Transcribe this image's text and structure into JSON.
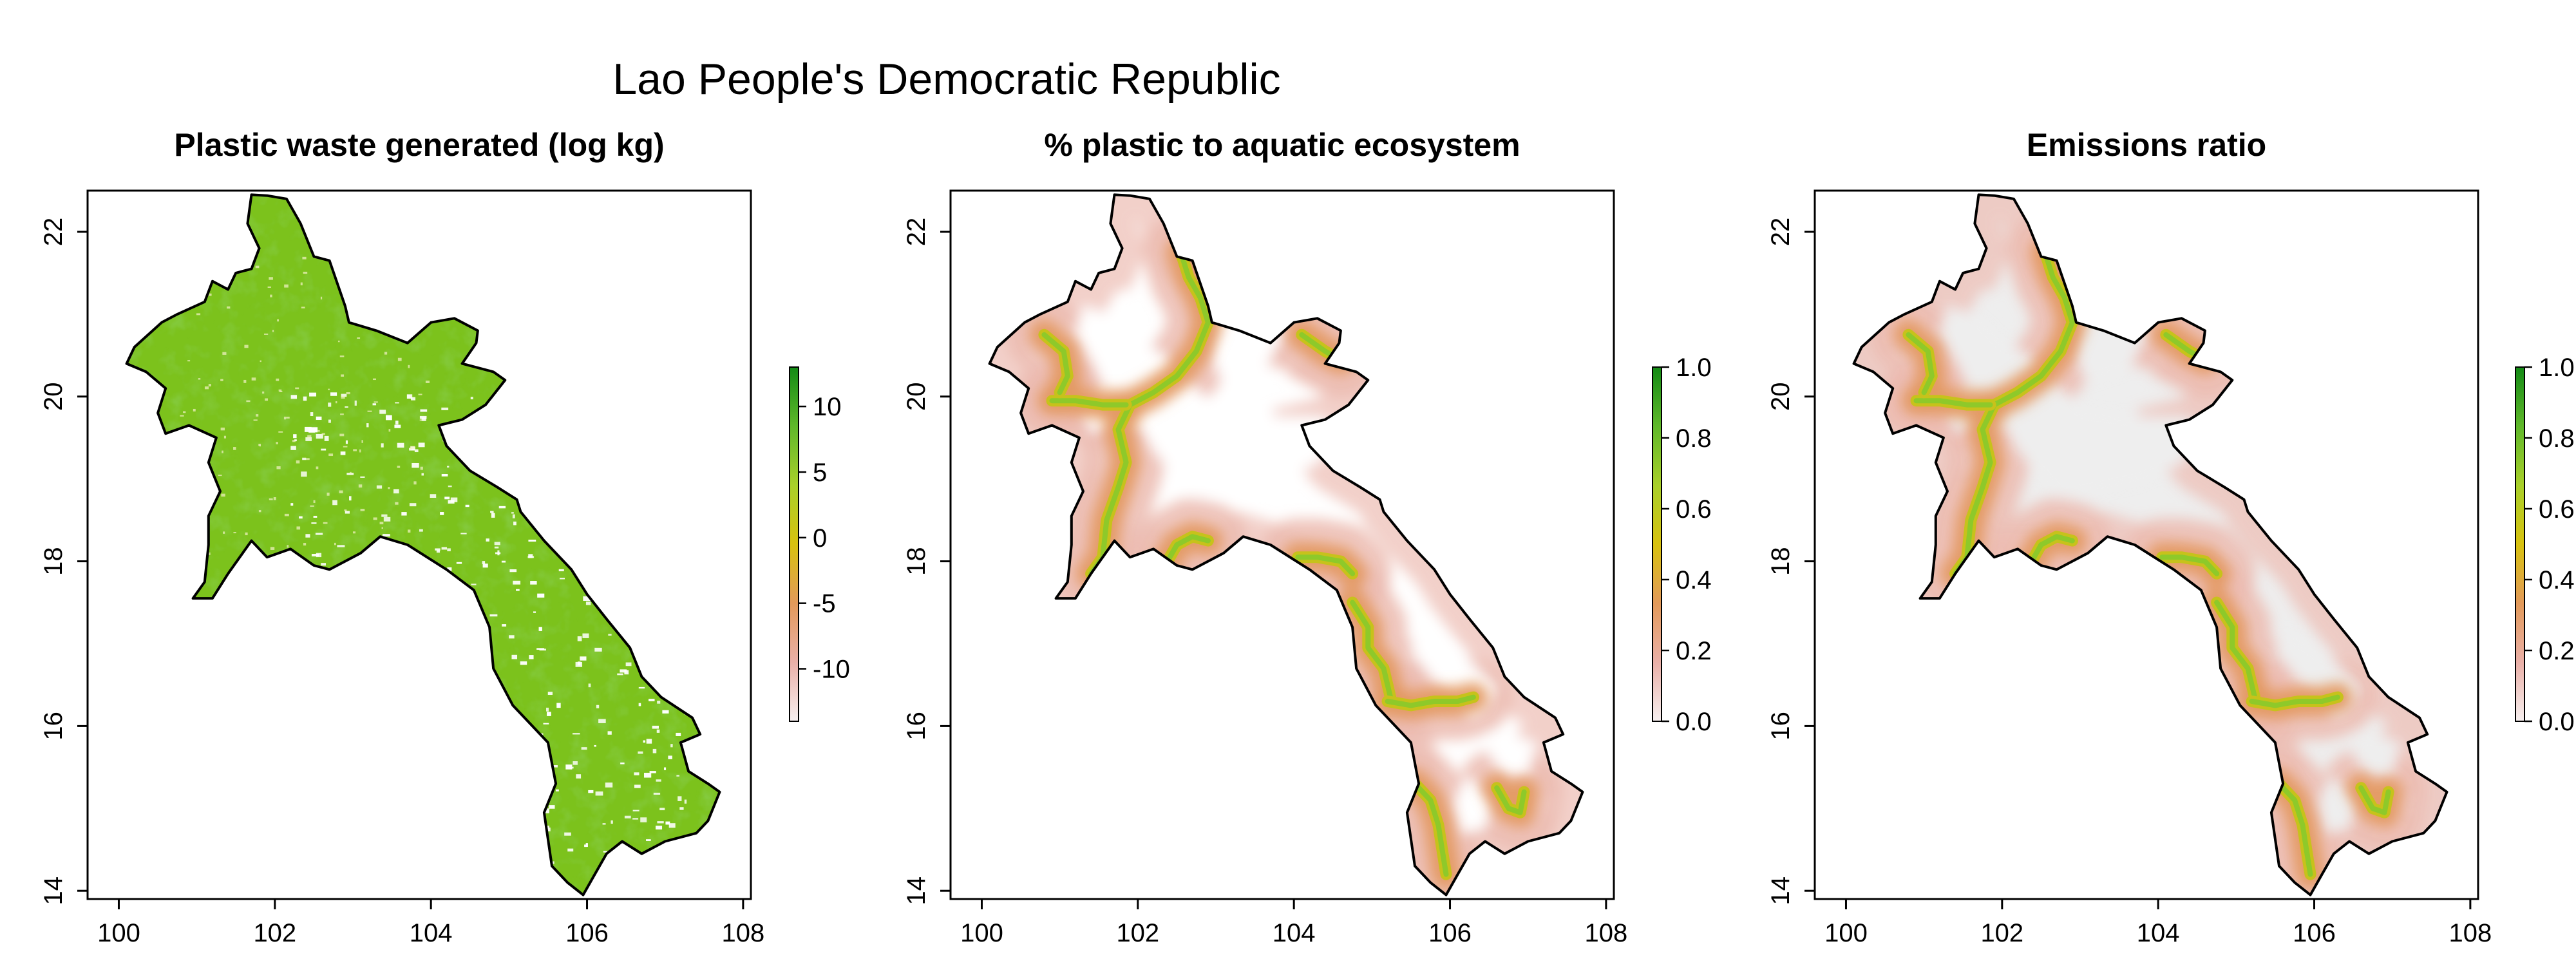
{
  "title": "Lao People's Democratic Republic",
  "panels": [
    {
      "title": "Plastic waste generated (log kg)",
      "variable": "waste",
      "x_ticks": [
        "100",
        "102",
        "104",
        "106",
        "108"
      ],
      "y_ticks": [
        "14",
        "16",
        "18",
        "20",
        "22"
      ],
      "xlim": [
        99.6,
        108.1
      ],
      "ylim": [
        13.9,
        22.5
      ],
      "colorbar": {
        "range": [
          -14,
          13
        ],
        "ticks": [
          "10",
          "5",
          "0",
          "-5",
          "-10"
        ],
        "tick_values": [
          10,
          5,
          0,
          -5,
          -10
        ],
        "colors": [
          "#f7f0f0",
          "#eab0a8",
          "#e39a5a",
          "#d8c20f",
          "#a9d02a",
          "#5fb82a",
          "#138a15"
        ]
      }
    },
    {
      "title": "% plastic to aquatic ecosystem",
      "variable": "aquatic_share",
      "x_ticks": [
        "100",
        "102",
        "104",
        "106",
        "108"
      ],
      "y_ticks": [
        "14",
        "16",
        "18",
        "20",
        "22"
      ],
      "xlim": [
        99.6,
        108.1
      ],
      "ylim": [
        13.9,
        22.5
      ],
      "colorbar": {
        "range": [
          0,
          1
        ],
        "ticks": [
          "1.0",
          "0.8",
          "0.6",
          "0.4",
          "0.2",
          "0.0"
        ],
        "tick_values": [
          1.0,
          0.8,
          0.6,
          0.4,
          0.2,
          0.0
        ],
        "colors": [
          "#f7f0f0",
          "#eab0a8",
          "#e39a5a",
          "#d8c20f",
          "#a9d02a",
          "#5fb82a",
          "#138a15"
        ]
      }
    },
    {
      "title": "Emissions ratio",
      "variable": "emissions_ratio",
      "x_ticks": [
        "100",
        "102",
        "104",
        "106",
        "108"
      ],
      "y_ticks": [
        "14",
        "16",
        "18",
        "20",
        "22"
      ],
      "xlim": [
        99.6,
        108.1
      ],
      "ylim": [
        13.9,
        22.5
      ],
      "colorbar": {
        "range": [
          0,
          1
        ],
        "ticks": [
          "1.0",
          "0.8",
          "0.6",
          "0.4",
          "0.2",
          "0.0"
        ],
        "tick_values": [
          1.0,
          0.8,
          0.6,
          0.4,
          0.2,
          0.0
        ],
        "colors": [
          "#f7f0f0",
          "#eab0a8",
          "#e39a5a",
          "#d8c20f",
          "#a9d02a",
          "#5fb82a",
          "#138a15"
        ]
      }
    }
  ],
  "colors": {
    "waste_fill": "#7cc21c",
    "waste_dark": "#3f9e15",
    "background_light": "#eeeeee",
    "river_core": "#8ec92a",
    "river_mid": "#c7c21b",
    "river_halo": "#e49a62",
    "halo_pink": "#ecbcb2",
    "border": "#000000"
  }
}
